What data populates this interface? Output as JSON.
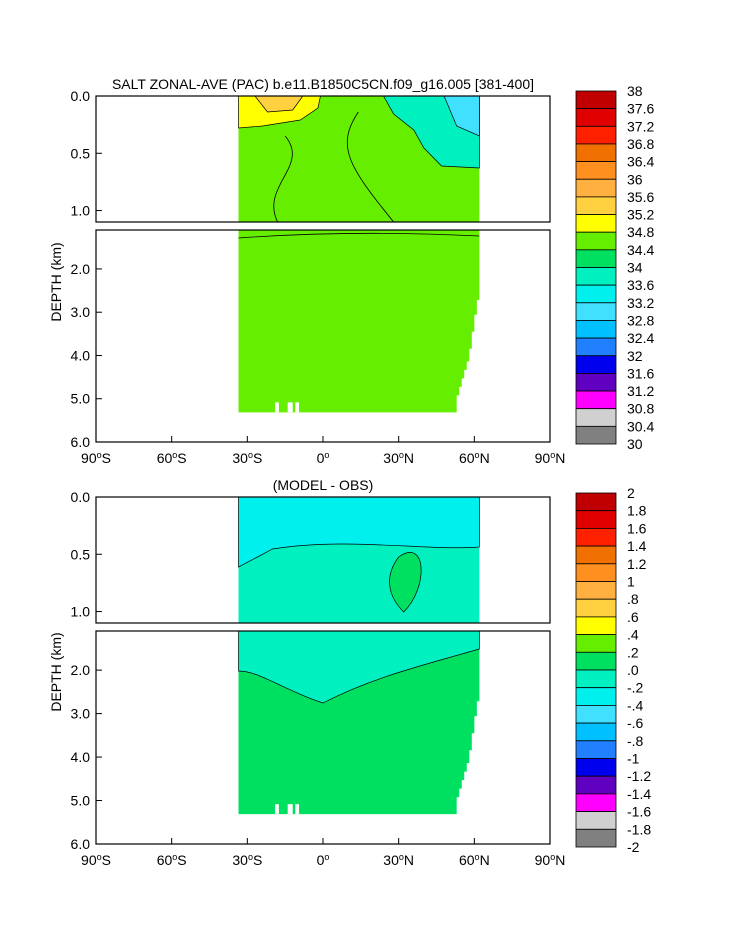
{
  "chart_data": [
    {
      "type": "heatmap",
      "title": "SALT ZONAL-AVE (PAC) b.e11.B1850C5CN.f09_g16.005 [381-400]",
      "ylabel": "DEPTH (km)",
      "xlabel": "",
      "x_ticks": [
        {
          "deg": -90,
          "label": "90",
          "hemi": "S"
        },
        {
          "deg": -60,
          "label": "60",
          "hemi": "S"
        },
        {
          "deg": -30,
          "label": "30",
          "hemi": "S"
        },
        {
          "deg": 0,
          "label": "0",
          "hemi": ""
        },
        {
          "deg": 30,
          "label": "30",
          "hemi": "N"
        },
        {
          "deg": 60,
          "label": "60",
          "hemi": "N"
        },
        {
          "deg": 90,
          "label": "90",
          "hemi": "N"
        }
      ],
      "y_ticks_upper": [
        "0.0",
        "0.5",
        "1.0"
      ],
      "y_ticks_lower": [
        "2.0",
        "3.0",
        "4.0",
        "5.0",
        "6.0"
      ],
      "xlim": [
        -90,
        90
      ],
      "ylim_upper_km": [
        0,
        1.1
      ],
      "ylim_lower_km": [
        1.1,
        6.0
      ],
      "colorbar_labels": [
        "38",
        "37.6",
        "37.2",
        "36.8",
        "36.4",
        "36",
        "35.6",
        "35.2",
        "34.8",
        "34.4",
        "34",
        "33.6",
        "33.2",
        "32.8",
        "32.4",
        "32",
        "31.6",
        "31.2",
        "30.8",
        "30.4",
        "30"
      ]
    },
    {
      "type": "heatmap",
      "title": "(MODEL - OBS)",
      "ylabel": "DEPTH (km)",
      "xlabel": "",
      "x_ticks": [
        {
          "deg": -90,
          "label": "90",
          "hemi": "S"
        },
        {
          "deg": -60,
          "label": "60",
          "hemi": "S"
        },
        {
          "deg": -30,
          "label": "30",
          "hemi": "S"
        },
        {
          "deg": 0,
          "label": "0",
          "hemi": ""
        },
        {
          "deg": 30,
          "label": "30",
          "hemi": "N"
        },
        {
          "deg": 60,
          "label": "60",
          "hemi": "N"
        },
        {
          "deg": 90,
          "label": "90",
          "hemi": "N"
        }
      ],
      "y_ticks_upper": [
        "0.0",
        "0.5",
        "1.0"
      ],
      "y_ticks_lower": [
        "2.0",
        "3.0",
        "4.0",
        "5.0",
        "6.0"
      ],
      "xlim": [
        -90,
        90
      ],
      "ylim_upper_km": [
        0,
        1.1
      ],
      "ylim_lower_km": [
        1.1,
        6.0
      ],
      "colorbar_labels": [
        "2",
        "1.8",
        "1.6",
        "1.4",
        "1.2",
        "1",
        ".8",
        ".6",
        ".4",
        ".2",
        ".0",
        "-.2",
        "-.4",
        "-.6",
        "-.8",
        "-1",
        "-1.2",
        "-1.4",
        "-1.6",
        "-1.8",
        "-2"
      ]
    }
  ],
  "colorbar_colors": [
    "#c00000",
    "#e00000",
    "#ff2000",
    "#f07000",
    "#ff9020",
    "#ffb040",
    "#ffd040",
    "#ffff00",
    "#66ee00",
    "#00e060",
    "#00f0c0",
    "#00f0ee",
    "#40e0ff",
    "#00c0ff",
    "#2080ff",
    "#0000ee",
    "#6000c0",
    "#ff00ff",
    "#d0d0d0",
    "#808080"
  ],
  "field_colors": {
    "upper_main": "#66ee00",
    "upper_high": "#ffff00",
    "upper_higher": "#ffd040",
    "upper_fresh": "#00f0c0",
    "upper_fresher": "#40e0ff",
    "lower_main": "#00e060",
    "lower_fresh": "#00f0c0",
    "lower_fresher": "#00f0ee"
  }
}
